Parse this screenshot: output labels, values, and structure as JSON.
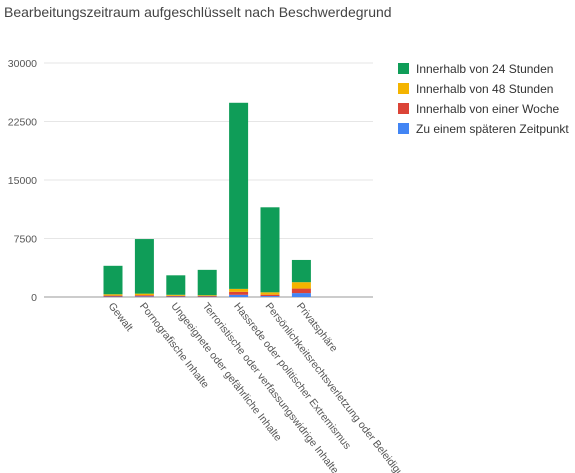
{
  "chart_data": {
    "type": "bar",
    "stacked": true,
    "title": "Bearbeitungszeitraum aufgeschlüsselt nach Beschwerdegrund",
    "xlabel": "",
    "ylabel": "",
    "ylim": [
      0,
      30000
    ],
    "yticks": [
      0,
      7500,
      15000,
      22500,
      30000
    ],
    "ytick_labels": [
      "0",
      "7500",
      "15000",
      "22500",
      "30000"
    ],
    "grid": true,
    "legend_position": "right",
    "categories": [
      "Gewalt",
      "Pornografische Inhalte",
      "Ungeeignete oder gefährliche Inhalte",
      "Terroristische oder verfassungswidrige Inhalte",
      "Hassrede oder politischer Extremismus",
      "Persönlichkeitsrechtsverletzung oder Beleidigung",
      "Privatsphäre"
    ],
    "series": [
      {
        "name": "Zu einem späteren Zeitpunkt",
        "color": "#4285F4",
        "values": [
          60,
          80,
          60,
          50,
          280,
          120,
          500
        ]
      },
      {
        "name": "Innerhalb von einer Woche",
        "color": "#DB4437",
        "values": [
          120,
          150,
          90,
          80,
          380,
          180,
          580
        ]
      },
      {
        "name": "Innerhalb von 48 Stunden",
        "color": "#F4B400",
        "values": [
          170,
          200,
          130,
          100,
          380,
          300,
          820
        ]
      },
      {
        "name": "Innerhalb von 24 Stunden",
        "color": "#0F9D58",
        "values": [
          3650,
          7000,
          2500,
          3250,
          23860,
          10900,
          2850
        ]
      }
    ],
    "legend_order": [
      "Innerhalb von 24 Stunden",
      "Innerhalb von 48 Stunden",
      "Innerhalb von einer Woche",
      "Zu einem späteren Zeitpunkt"
    ]
  }
}
